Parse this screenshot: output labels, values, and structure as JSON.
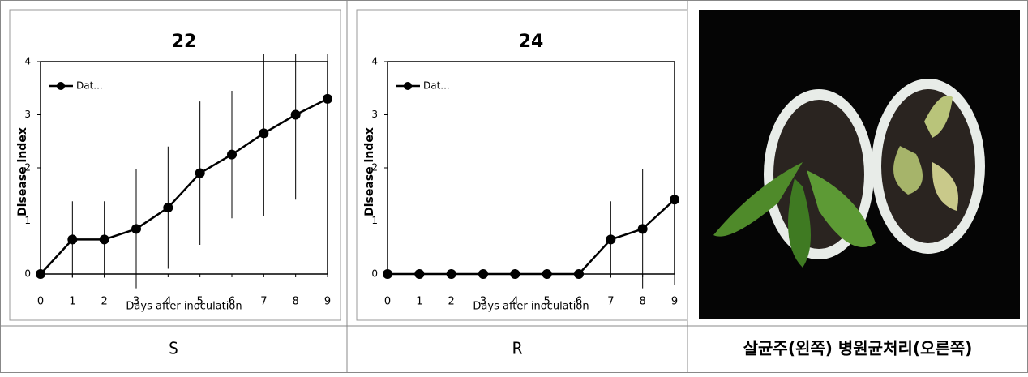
{
  "chart_data": [
    {
      "type": "line",
      "title": "22",
      "x_label": "Days after inoculation",
      "y_label": "Disease index",
      "x": [
        0,
        1,
        2,
        3,
        4,
        5,
        6,
        7,
        8,
        9
      ],
      "xlim": [
        0,
        9
      ],
      "xticks": [
        0,
        1,
        2,
        3,
        4,
        5,
        6,
        7,
        8,
        9
      ],
      "ylim": [
        0,
        4
      ],
      "yticks": [
        0,
        1,
        2,
        3,
        4
      ],
      "legend": "upper left",
      "series": [
        {
          "name": "Dat...",
          "color": "#000000",
          "values": [
            0,
            0.65,
            0.65,
            0.85,
            1.25,
            1.9,
            2.25,
            2.65,
            3.0,
            3.3
          ],
          "errors": [
            0,
            0.72,
            0.72,
            1.12,
            1.15,
            1.35,
            1.2,
            1.55,
            1.6,
            1.55
          ]
        }
      ]
    },
    {
      "type": "line",
      "title": "24",
      "x_label": "Days after inoculation",
      "y_label": "Disease index",
      "x": [
        0,
        1,
        2,
        3,
        4,
        5,
        6,
        7,
        8,
        9
      ],
      "xlim": [
        0,
        9
      ],
      "xticks": [
        0,
        1,
        2,
        3,
        4,
        5,
        6,
        7,
        8,
        9
      ],
      "ylim": [
        0,
        4
      ],
      "yticks": [
        0,
        1,
        2,
        3,
        4
      ],
      "legend": "upper left",
      "series": [
        {
          "name": "Dat...",
          "color": "#000000",
          "values": [
            0,
            0,
            0,
            0,
            0,
            0,
            0,
            0.65,
            0.85,
            1.4
          ],
          "errors": [
            0,
            0,
            0,
            0,
            0,
            0,
            0,
            0.72,
            1.12,
            1.6
          ]
        }
      ]
    }
  ],
  "table": {
    "captions": [
      "S",
      "R",
      "살균주(왼쪽) 병원균처리(오른쪽)"
    ]
  }
}
